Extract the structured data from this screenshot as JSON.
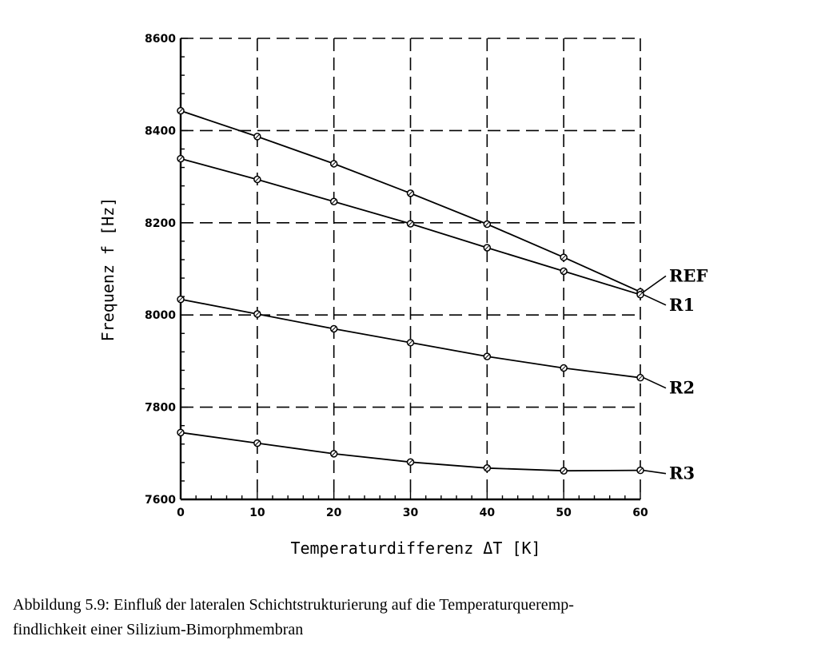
{
  "chart_data": {
    "type": "line",
    "xlabel": "Temperaturdifferenz ΔT [K]",
    "ylabel": "Frequenz f [Hz]",
    "xlim": [
      0,
      60
    ],
    "ylim": [
      7600,
      8600
    ],
    "x_ticks": [
      "0",
      "10",
      "20",
      "30",
      "40",
      "50",
      "60"
    ],
    "y_ticks": [
      "7600",
      "7800",
      "8000",
      "8200",
      "8400",
      "8600"
    ],
    "grid": true,
    "grid_style": "dashed",
    "x": [
      0,
      10,
      20,
      30,
      40,
      50,
      60
    ],
    "series": [
      {
        "name": "REF",
        "values": [
          8443,
          8387,
          8328,
          8264,
          8197,
          8125,
          8050
        ]
      },
      {
        "name": "R1",
        "values": [
          8339,
          8294,
          8246,
          8198,
          8146,
          8095,
          8044
        ]
      },
      {
        "name": "R2",
        "values": [
          8034,
          8002,
          7970,
          7940,
          7910,
          7885,
          7864
        ]
      },
      {
        "name": "R3",
        "values": [
          7745,
          7722,
          7699,
          7681,
          7668,
          7662,
          7663
        ]
      }
    ]
  },
  "caption": {
    "line1": "Abbildung 5.9: Einfluß der lateralen Schichtstrukturierung auf die Temperaturquerem­p-",
    "line2": "findlichkeit einer Silizium-Bimorphmembran"
  }
}
